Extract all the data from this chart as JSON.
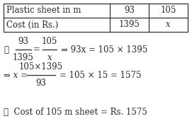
{
  "table_headers": [
    "Plastic sheet in m",
    "93",
    "105"
  ],
  "table_row2": [
    "Cost (in Rs.)",
    "1395",
    "x"
  ],
  "frac1_num": "93",
  "frac1_den": "1395",
  "frac2_num": "105",
  "frac2_den": "x",
  "eq1_right": "⇒ 93x = 105 × 1395",
  "frac3_num": "105×1395",
  "frac3_den": "93",
  "eq2_left": "⇒ x =",
  "eq2_right": "= 105 × 15 = 1575",
  "line3": "∴  Cost of 105 m sheet = Rs. 1575",
  "bg_color": "#ffffff",
  "text_color": "#2a2a2a",
  "table_border_color": "#333333",
  "fs_table": 8.5,
  "fs_body": 8.5
}
